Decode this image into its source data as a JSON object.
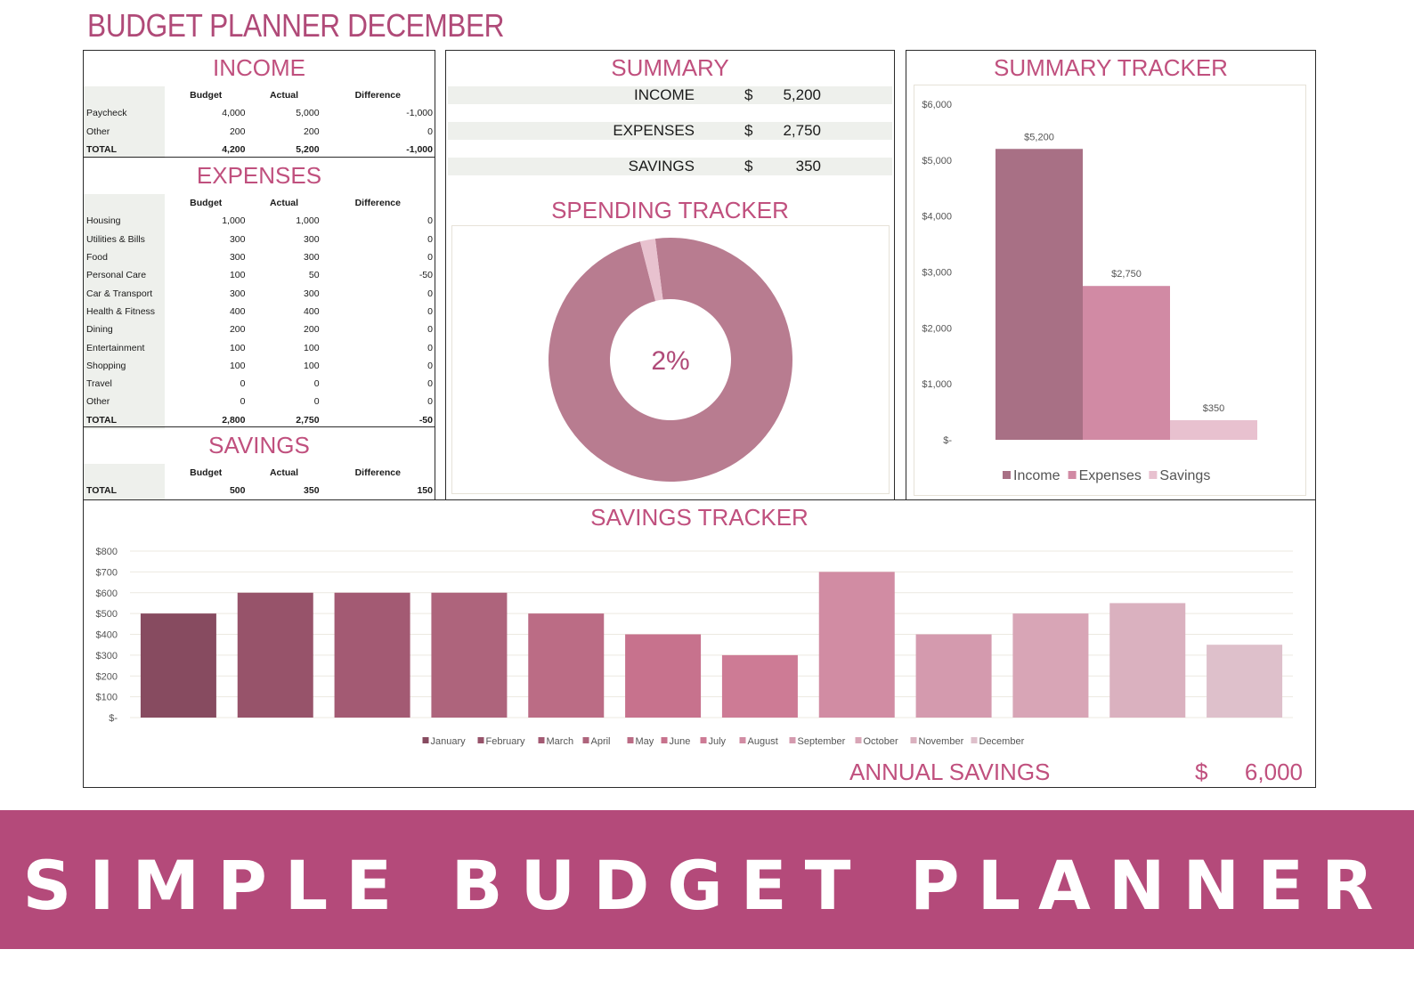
{
  "page_title": "BUDGET PLANNER DECEMBER",
  "income": {
    "title": "INCOME",
    "headers": [
      "Budget",
      "Actual",
      "Difference"
    ],
    "rows": [
      {
        "label": "Paycheck",
        "budget": "4,000",
        "actual": "5,000",
        "diff": "-1,000"
      },
      {
        "label": "Other",
        "budget": "200",
        "actual": "200",
        "diff": "0"
      }
    ],
    "total": {
      "label": "TOTAL",
      "budget": "4,200",
      "actual": "5,200",
      "diff": "-1,000"
    }
  },
  "expenses": {
    "title": "EXPENSES",
    "headers": [
      "Budget",
      "Actual",
      "Difference"
    ],
    "rows": [
      {
        "label": "Housing",
        "budget": "1,000",
        "actual": "1,000",
        "diff": "0"
      },
      {
        "label": "Utilities & Bills",
        "budget": "300",
        "actual": "300",
        "diff": "0"
      },
      {
        "label": "Food",
        "budget": "300",
        "actual": "300",
        "diff": "0"
      },
      {
        "label": "Personal Care",
        "budget": "100",
        "actual": "50",
        "diff": "-50"
      },
      {
        "label": "Car & Transport",
        "budget": "300",
        "actual": "300",
        "diff": "0"
      },
      {
        "label": "Health & Fitness",
        "budget": "400",
        "actual": "400",
        "diff": "0"
      },
      {
        "label": "Dining",
        "budget": "200",
        "actual": "200",
        "diff": "0"
      },
      {
        "label": "Entertainment",
        "budget": "100",
        "actual": "100",
        "diff": "0"
      },
      {
        "label": "Shopping",
        "budget": "100",
        "actual": "100",
        "diff": "0"
      },
      {
        "label": "Travel",
        "budget": "0",
        "actual": "0",
        "diff": "0"
      },
      {
        "label": "Other",
        "budget": "0",
        "actual": "0",
        "diff": "0"
      }
    ],
    "total": {
      "label": "TOTAL",
      "budget": "2,800",
      "actual": "2,750",
      "diff": "-50"
    }
  },
  "savings": {
    "title": "SAVINGS",
    "headers": [
      "Budget",
      "Actual",
      "Difference"
    ],
    "total": {
      "label": "TOTAL",
      "budget": "500",
      "actual": "350",
      "diff": "150"
    }
  },
  "summary": {
    "title": "SUMMARY",
    "rows": [
      {
        "label": "INCOME",
        "currency": "$",
        "value": "5,200"
      },
      {
        "label": "EXPENSES",
        "currency": "$",
        "value": "2,750"
      },
      {
        "label": "SAVINGS",
        "currency": "$",
        "value": "350"
      }
    ]
  },
  "spending_tracker": {
    "title": "SPENDING TRACKER",
    "center_label": "2%"
  },
  "summary_tracker": {
    "title": "SUMMARY TRACKER"
  },
  "savings_tracker": {
    "title": "SAVINGS TRACKER"
  },
  "annual_savings": {
    "label": "ANNUAL SAVINGS",
    "currency": "$",
    "value": "6,000"
  },
  "banner": {
    "text": "SIMPLE BUDGET PLANNER"
  },
  "colors": {
    "accent": "#b44a7a",
    "title_pink": "#c0507e",
    "donut_main": "#b87c90",
    "donut_slice": "#e8c2cf",
    "income_bar": "#a87085",
    "expenses_bar": "#d18aa4",
    "savings_bar": "#e8c1cf"
  },
  "chart_data": [
    {
      "type": "pie",
      "variant": "donut",
      "title": "SPENDING TRACKER",
      "center_label": "2%",
      "slices": [
        {
          "label": "main",
          "value": 98,
          "color": "#b87c90"
        },
        {
          "label": "small",
          "value": 2,
          "color": "#e8c2cf"
        }
      ]
    },
    {
      "type": "bar",
      "title": "SUMMARY TRACKER",
      "categories": [
        "Income",
        "Expenses",
        "Savings"
      ],
      "values": [
        5200,
        2750,
        350
      ],
      "data_labels": [
        "$5,200",
        "$2,750",
        "$350"
      ],
      "colors": [
        "#a87085",
        "#d18aa4",
        "#e8c1cf"
      ],
      "ylim": [
        0,
        6000
      ],
      "yticks": [
        0,
        1000,
        2000,
        3000,
        4000,
        5000,
        6000
      ],
      "ytick_labels": [
        "$-",
        "$1,000",
        "$2,000",
        "$3,000",
        "$4,000",
        "$5,000",
        "$6,000"
      ],
      "legend": [
        "Income",
        "Expenses",
        "Savings"
      ],
      "legend_position": "bottom",
      "grid": false
    },
    {
      "type": "bar",
      "title": "SAVINGS TRACKER",
      "categories": [
        "January",
        "February",
        "March",
        "April",
        "May",
        "June",
        "July",
        "August",
        "September",
        "October",
        "November",
        "December"
      ],
      "values": [
        500,
        600,
        600,
        600,
        500,
        400,
        300,
        700,
        400,
        500,
        550,
        350
      ],
      "colors": [
        "#874b60",
        "#97536a",
        "#a35a73",
        "#ae647c",
        "#bb6c85",
        "#c7728d",
        "#cd7b95",
        "#d18ca3",
        "#d49aae",
        "#d8a5b6",
        "#dab1bf",
        "#dec0cb"
      ],
      "ylim": [
        0,
        800
      ],
      "yticks": [
        0,
        100,
        200,
        300,
        400,
        500,
        600,
        700,
        800
      ],
      "ytick_labels": [
        "$-",
        "$100",
        "$200",
        "$300",
        "$400",
        "$500",
        "$600",
        "$700",
        "$800"
      ],
      "legend_position": "bottom",
      "grid": true
    }
  ]
}
